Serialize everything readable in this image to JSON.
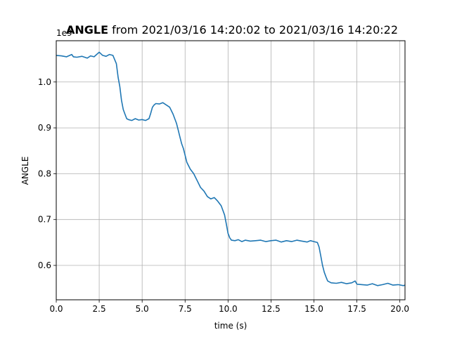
{
  "chart_data": {
    "type": "line",
    "title_bold": "ANGLE",
    "title_rest": " from 2021/03/16 14:20:02 to 2021/03/16 14:20:22",
    "xlabel": "time (s)",
    "ylabel": "ANGLE",
    "offset_text": "1e9",
    "xlim": [
      0,
      20.3
    ],
    "ylim": [
      0.525,
      1.09
    ],
    "xticks": [
      0,
      2.5,
      5,
      7.5,
      10,
      12.5,
      15,
      17.5,
      20
    ],
    "xtick_labels": [
      "0.0",
      "2.5",
      "5.0",
      "7.5",
      "10.0",
      "12.5",
      "15.0",
      "17.5",
      "20.0"
    ],
    "yticks": [
      0.6,
      0.7,
      0.8,
      0.9,
      1.0
    ],
    "ytick_labels": [
      "0.6",
      "0.7",
      "0.8",
      "0.9",
      "1.0"
    ],
    "grid": true,
    "color": "#1f77b4",
    "series": [
      {
        "x": [
          0,
          0.3,
          0.6,
          0.9,
          1.0,
          1.2,
          1.5,
          1.8,
          2.0,
          2.2,
          2.5,
          2.7,
          2.9,
          3.1,
          3.3,
          3.5,
          3.6,
          3.7,
          3.8,
          3.9,
          4.0,
          4.1,
          4.2,
          4.4,
          4.6,
          4.8,
          5.0,
          5.2,
          5.4,
          5.5,
          5.6,
          5.7,
          5.8,
          6.0,
          6.2,
          6.4,
          6.6,
          6.8,
          7.0,
          7.1,
          7.2,
          7.3,
          7.4,
          7.5,
          7.6,
          7.8,
          8.0,
          8.2,
          8.4,
          8.6,
          8.8,
          9.0,
          9.2,
          9.4,
          9.6,
          9.8,
          9.9,
          10.0,
          10.1,
          10.2,
          10.4,
          10.6,
          10.8,
          11.0,
          11.3,
          11.6,
          11.9,
          12.2,
          12.5,
          12.8,
          13.1,
          13.4,
          13.7,
          14.0,
          14.3,
          14.6,
          14.8,
          15.0,
          15.2,
          15.3,
          15.4,
          15.5,
          15.6,
          15.7,
          15.8,
          16.0,
          16.3,
          16.6,
          16.9,
          17.2,
          17.4,
          17.5,
          17.8,
          18.1,
          18.4,
          18.7,
          19.0,
          19.3,
          19.6,
          19.9,
          20.2,
          20.3
        ],
        "y": [
          1.058,
          1.057,
          1.055,
          1.06,
          1.055,
          1.054,
          1.056,
          1.052,
          1.057,
          1.055,
          1.065,
          1.058,
          1.056,
          1.06,
          1.058,
          1.04,
          1.01,
          0.99,
          0.96,
          0.94,
          0.93,
          0.92,
          0.918,
          0.916,
          0.92,
          0.917,
          0.918,
          0.916,
          0.92,
          0.932,
          0.945,
          0.95,
          0.953,
          0.952,
          0.955,
          0.95,
          0.945,
          0.93,
          0.91,
          0.895,
          0.88,
          0.865,
          0.855,
          0.84,
          0.825,
          0.81,
          0.8,
          0.785,
          0.77,
          0.762,
          0.75,
          0.745,
          0.748,
          0.74,
          0.73,
          0.71,
          0.69,
          0.67,
          0.66,
          0.655,
          0.654,
          0.656,
          0.652,
          0.655,
          0.653,
          0.654,
          0.655,
          0.652,
          0.654,
          0.655,
          0.651,
          0.654,
          0.652,
          0.655,
          0.653,
          0.651,
          0.654,
          0.652,
          0.65,
          0.64,
          0.62,
          0.6,
          0.585,
          0.575,
          0.566,
          0.562,
          0.561,
          0.563,
          0.56,
          0.562,
          0.566,
          0.559,
          0.558,
          0.557,
          0.56,
          0.556,
          0.558,
          0.561,
          0.557,
          0.558,
          0.556,
          0.557
        ]
      }
    ]
  }
}
